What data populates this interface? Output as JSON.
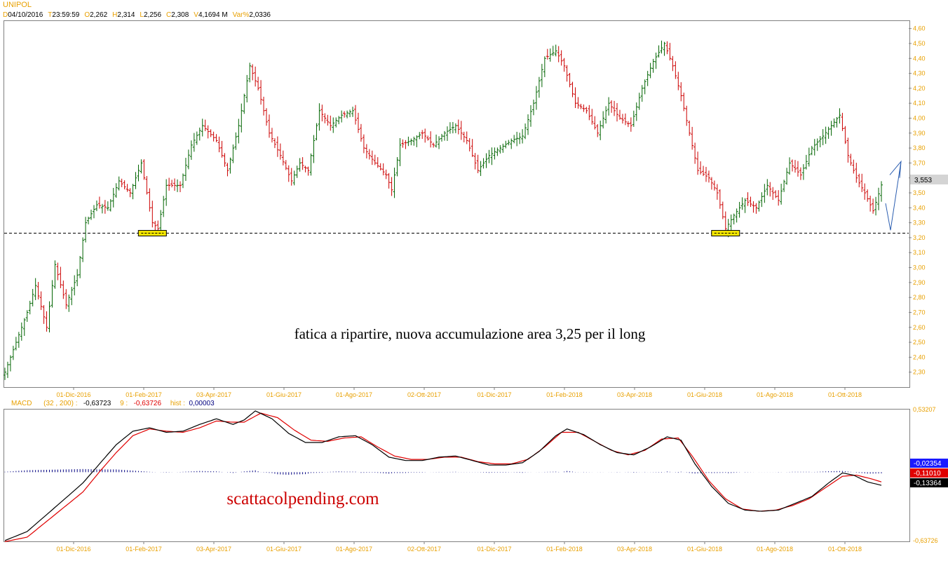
{
  "header": {
    "symbol": "UNIPOL",
    "fields": [
      {
        "key": "D",
        "value": "04/10/2016"
      },
      {
        "key": "T",
        "value": "23:59:59"
      },
      {
        "key": "O",
        "value": "2,262"
      },
      {
        "key": "H",
        "value": "2,314"
      },
      {
        "key": "L",
        "value": "2,256"
      },
      {
        "key": "C",
        "value": "2,308"
      },
      {
        "key": "V",
        "value": "4,1694 M"
      },
      {
        "key": "Var%",
        "value": "2,0336"
      }
    ]
  },
  "macd_header": {
    "label": "MACD",
    "params": "(32 , 200) :",
    "macd_value": "-0,63723",
    "signal_label": "9 :",
    "signal_value": "-0,63726",
    "hist_label": "hist :",
    "hist_value": "0,00003"
  },
  "annotations": {
    "main_text": "fatica a ripartire, nuova accumulazione area 3,25 per il long",
    "watermark": "scattacolpending.com"
  },
  "colors": {
    "up": "#006400",
    "down": "#cc0000",
    "axis_text": "#e8a000",
    "macd_line": "#000000",
    "signal_line": "#e00000",
    "histogram": "#000080",
    "support_line": "#000000",
    "highlight_box": "#f5e600",
    "arrow": "#2a5db0"
  },
  "chart_data": [
    {
      "type": "candlestick",
      "title": "UNIPOL",
      "x_tick_labels": [
        "01-Dic-2016",
        "01-Feb-2017",
        "03-Apr-2017",
        "01-Giu-2017",
        "01-Ago-2017",
        "02-Ott-2017",
        "01-Dic-2017",
        "01-Feb-2018",
        "03-Apr-2018",
        "01-Giu-2018",
        "01-Ago-2018",
        "01-Ott-2018"
      ],
      "y_tick_labels": [
        "2,30",
        "2,40",
        "2,50",
        "2,60",
        "2,70",
        "2,80",
        "2,90",
        "3,00",
        "3,10",
        "3,20",
        "3,30",
        "3,40",
        "3,50",
        "3,60",
        "3,70",
        "3,80",
        "3,90",
        "4,00",
        "4,10",
        "4,20",
        "4,30",
        "4,40",
        "4,50",
        "4,60"
      ],
      "ylim": [
        2.2,
        4.65
      ],
      "last_price_label": "3,553",
      "last_price": 3.553,
      "support_level": 3.23,
      "price_path_keypoints": [
        {
          "t": 0,
          "p": 2.3
        },
        {
          "t": 3,
          "p": 2.45
        },
        {
          "t": 8,
          "p": 2.7
        },
        {
          "t": 11,
          "p": 2.88
        },
        {
          "t": 15,
          "p": 2.6
        },
        {
          "t": 18,
          "p": 3.02
        },
        {
          "t": 22,
          "p": 2.75
        },
        {
          "t": 26,
          "p": 2.95
        },
        {
          "t": 29,
          "p": 3.3
        },
        {
          "t": 33,
          "p": 3.42
        },
        {
          "t": 37,
          "p": 3.4
        },
        {
          "t": 41,
          "p": 3.58
        },
        {
          "t": 45,
          "p": 3.5
        },
        {
          "t": 49,
          "p": 3.7
        },
        {
          "t": 53,
          "p": 3.3
        },
        {
          "t": 55,
          "p": 3.26
        },
        {
          "t": 58,
          "p": 3.55
        },
        {
          "t": 63,
          "p": 3.55
        },
        {
          "t": 67,
          "p": 3.82
        },
        {
          "t": 71,
          "p": 3.95
        },
        {
          "t": 76,
          "p": 3.85
        },
        {
          "t": 80,
          "p": 3.65
        },
        {
          "t": 84,
          "p": 3.95
        },
        {
          "t": 88,
          "p": 4.35
        },
        {
          "t": 91,
          "p": 4.2
        },
        {
          "t": 95,
          "p": 3.9
        },
        {
          "t": 99,
          "p": 3.75
        },
        {
          "t": 103,
          "p": 3.58
        },
        {
          "t": 106,
          "p": 3.7
        },
        {
          "t": 109,
          "p": 3.65
        },
        {
          "t": 113,
          "p": 4.05
        },
        {
          "t": 117,
          "p": 3.95
        },
        {
          "t": 121,
          "p": 4.02
        },
        {
          "t": 125,
          "p": 4.05
        },
        {
          "t": 129,
          "p": 3.8
        },
        {
          "t": 133,
          "p": 3.7
        },
        {
          "t": 137,
          "p": 3.62
        },
        {
          "t": 139,
          "p": 3.52
        },
        {
          "t": 142,
          "p": 3.82
        },
        {
          "t": 146,
          "p": 3.85
        },
        {
          "t": 150,
          "p": 3.9
        },
        {
          "t": 154,
          "p": 3.82
        },
        {
          "t": 158,
          "p": 3.9
        },
        {
          "t": 162,
          "p": 3.95
        },
        {
          "t": 166,
          "p": 3.85
        },
        {
          "t": 170,
          "p": 3.65
        },
        {
          "t": 174,
          "p": 3.75
        },
        {
          "t": 178,
          "p": 3.8
        },
        {
          "t": 182,
          "p": 3.85
        },
        {
          "t": 186,
          "p": 3.88
        },
        {
          "t": 190,
          "p": 4.1
        },
        {
          "t": 194,
          "p": 4.4
        },
        {
          "t": 198,
          "p": 4.45
        },
        {
          "t": 201,
          "p": 4.35
        },
        {
          "t": 205,
          "p": 4.1
        },
        {
          "t": 209,
          "p": 4.05
        },
        {
          "t": 213,
          "p": 3.9
        },
        {
          "t": 217,
          "p": 4.1
        },
        {
          "t": 221,
          "p": 4.0
        },
        {
          "t": 225,
          "p": 3.95
        },
        {
          "t": 229,
          "p": 4.2
        },
        {
          "t": 233,
          "p": 4.38
        },
        {
          "t": 237,
          "p": 4.5
        },
        {
          "t": 240,
          "p": 4.35
        },
        {
          "t": 243,
          "p": 4.15
        },
        {
          "t": 246,
          "p": 3.9
        },
        {
          "t": 249,
          "p": 3.65
        },
        {
          "t": 253,
          "p": 3.6
        },
        {
          "t": 256,
          "p": 3.5
        },
        {
          "t": 259,
          "p": 3.26
        },
        {
          "t": 262,
          "p": 3.35
        },
        {
          "t": 266,
          "p": 3.45
        },
        {
          "t": 270,
          "p": 3.4
        },
        {
          "t": 274,
          "p": 3.55
        },
        {
          "t": 278,
          "p": 3.45
        },
        {
          "t": 282,
          "p": 3.7
        },
        {
          "t": 286,
          "p": 3.62
        },
        {
          "t": 290,
          "p": 3.8
        },
        {
          "t": 294,
          "p": 3.88
        },
        {
          "t": 297,
          "p": 3.95
        },
        {
          "t": 300,
          "p": 4.02
        },
        {
          "t": 303,
          "p": 3.75
        },
        {
          "t": 306,
          "p": 3.6
        },
        {
          "t": 309,
          "p": 3.5
        },
        {
          "t": 312,
          "p": 3.38
        },
        {
          "t": 315,
          "p": 3.55
        }
      ]
    },
    {
      "type": "line",
      "title": "MACD",
      "ylim": [
        -0.63726,
        0.53207
      ],
      "y_tick_labels": [
        "0,53207",
        "-0,63726"
      ],
      "value_tags": [
        {
          "label": "-0,02354",
          "value": -0.02354,
          "color": "#1a1aff"
        },
        {
          "label": "-0,11010",
          "value": -0.1101,
          "color": "#e00000"
        },
        {
          "label": "-0,13364",
          "value": -0.13364,
          "color": "#000000"
        }
      ],
      "series": [
        {
          "name": "MACD",
          "keypoints": [
            {
              "t": 0,
              "v": -0.63
            },
            {
              "t": 8,
              "v": -0.55
            },
            {
              "t": 15,
              "v": -0.4
            },
            {
              "t": 22,
              "v": -0.25
            },
            {
              "t": 28,
              "v": -0.12
            },
            {
              "t": 34,
              "v": 0.05
            },
            {
              "t": 40,
              "v": 0.22
            },
            {
              "t": 46,
              "v": 0.34
            },
            {
              "t": 52,
              "v": 0.37
            },
            {
              "t": 58,
              "v": 0.33
            },
            {
              "t": 64,
              "v": 0.34
            },
            {
              "t": 70,
              "v": 0.4
            },
            {
              "t": 76,
              "v": 0.45
            },
            {
              "t": 82,
              "v": 0.4
            },
            {
              "t": 86,
              "v": 0.44
            },
            {
              "t": 90,
              "v": 0.52
            },
            {
              "t": 96,
              "v": 0.45
            },
            {
              "t": 102,
              "v": 0.32
            },
            {
              "t": 108,
              "v": 0.24
            },
            {
              "t": 114,
              "v": 0.24
            },
            {
              "t": 120,
              "v": 0.29
            },
            {
              "t": 126,
              "v": 0.3
            },
            {
              "t": 132,
              "v": 0.22
            },
            {
              "t": 138,
              "v": 0.11
            },
            {
              "t": 144,
              "v": 0.08
            },
            {
              "t": 150,
              "v": 0.08
            },
            {
              "t": 156,
              "v": 0.11
            },
            {
              "t": 162,
              "v": 0.12
            },
            {
              "t": 168,
              "v": 0.08
            },
            {
              "t": 174,
              "v": 0.04
            },
            {
              "t": 180,
              "v": 0.04
            },
            {
              "t": 186,
              "v": 0.06
            },
            {
              "t": 192,
              "v": 0.16
            },
            {
              "t": 198,
              "v": 0.3
            },
            {
              "t": 202,
              "v": 0.36
            },
            {
              "t": 208,
              "v": 0.31
            },
            {
              "t": 214,
              "v": 0.22
            },
            {
              "t": 220,
              "v": 0.15
            },
            {
              "t": 226,
              "v": 0.13
            },
            {
              "t": 232,
              "v": 0.2
            },
            {
              "t": 238,
              "v": 0.29
            },
            {
              "t": 243,
              "v": 0.26
            },
            {
              "t": 248,
              "v": 0.05
            },
            {
              "t": 254,
              "v": -0.15
            },
            {
              "t": 260,
              "v": -0.3
            },
            {
              "t": 266,
              "v": -0.36
            },
            {
              "t": 272,
              "v": -0.37
            },
            {
              "t": 278,
              "v": -0.36
            },
            {
              "t": 284,
              "v": -0.3
            },
            {
              "t": 290,
              "v": -0.24
            },
            {
              "t": 296,
              "v": -0.12
            },
            {
              "t": 301,
              "v": -0.03
            },
            {
              "t": 305,
              "v": -0.05
            },
            {
              "t": 310,
              "v": -0.11
            },
            {
              "t": 315,
              "v": -0.14
            }
          ]
        },
        {
          "name": "Signal",
          "keypoints": [
            {
              "t": 0,
              "v": -0.64
            },
            {
              "t": 8,
              "v": -0.6
            },
            {
              "t": 15,
              "v": -0.46
            },
            {
              "t": 22,
              "v": -0.32
            },
            {
              "t": 28,
              "v": -0.2
            },
            {
              "t": 34,
              "v": -0.02
            },
            {
              "t": 40,
              "v": 0.15
            },
            {
              "t": 46,
              "v": 0.3
            },
            {
              "t": 52,
              "v": 0.36
            },
            {
              "t": 58,
              "v": 0.34
            },
            {
              "t": 64,
              "v": 0.33
            },
            {
              "t": 70,
              "v": 0.37
            },
            {
              "t": 76,
              "v": 0.43
            },
            {
              "t": 82,
              "v": 0.42
            },
            {
              "t": 86,
              "v": 0.42
            },
            {
              "t": 92,
              "v": 0.5
            },
            {
              "t": 98,
              "v": 0.46
            },
            {
              "t": 104,
              "v": 0.35
            },
            {
              "t": 110,
              "v": 0.26
            },
            {
              "t": 116,
              "v": 0.25
            },
            {
              "t": 122,
              "v": 0.28
            },
            {
              "t": 128,
              "v": 0.29
            },
            {
              "t": 134,
              "v": 0.2
            },
            {
              "t": 140,
              "v": 0.12
            },
            {
              "t": 146,
              "v": 0.09
            },
            {
              "t": 152,
              "v": 0.09
            },
            {
              "t": 158,
              "v": 0.11
            },
            {
              "t": 164,
              "v": 0.11
            },
            {
              "t": 170,
              "v": 0.07
            },
            {
              "t": 176,
              "v": 0.05
            },
            {
              "t": 182,
              "v": 0.05
            },
            {
              "t": 188,
              "v": 0.09
            },
            {
              "t": 194,
              "v": 0.2
            },
            {
              "t": 200,
              "v": 0.33
            },
            {
              "t": 206,
              "v": 0.33
            },
            {
              "t": 212,
              "v": 0.25
            },
            {
              "t": 218,
              "v": 0.17
            },
            {
              "t": 224,
              "v": 0.13
            },
            {
              "t": 230,
              "v": 0.17
            },
            {
              "t": 236,
              "v": 0.27
            },
            {
              "t": 242,
              "v": 0.28
            },
            {
              "t": 247,
              "v": 0.12
            },
            {
              "t": 253,
              "v": -0.1
            },
            {
              "t": 259,
              "v": -0.26
            },
            {
              "t": 265,
              "v": -0.35
            },
            {
              "t": 271,
              "v": -0.37
            },
            {
              "t": 277,
              "v": -0.36
            },
            {
              "t": 283,
              "v": -0.32
            },
            {
              "t": 289,
              "v": -0.26
            },
            {
              "t": 295,
              "v": -0.16
            },
            {
              "t": 301,
              "v": -0.06
            },
            {
              "t": 306,
              "v": -0.05
            },
            {
              "t": 311,
              "v": -0.08
            },
            {
              "t": 315,
              "v": -0.11
            }
          ]
        }
      ]
    }
  ]
}
